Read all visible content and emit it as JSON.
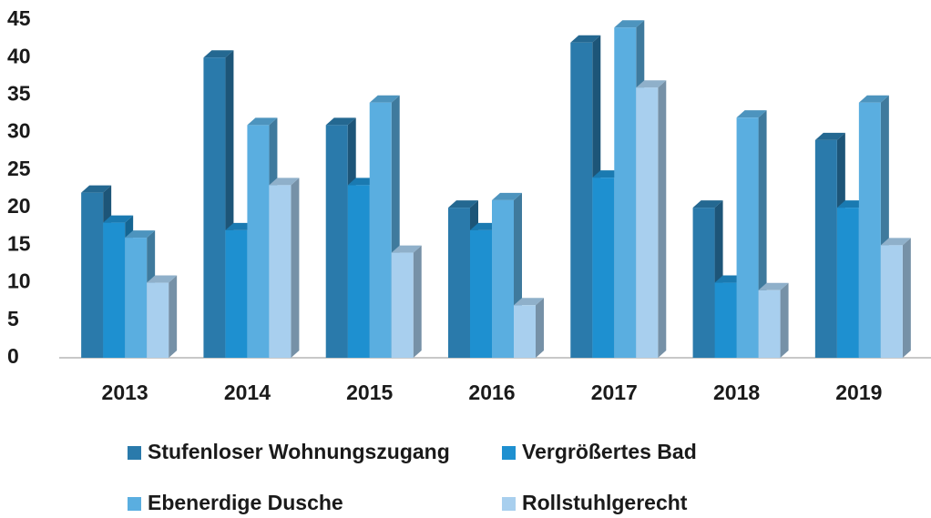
{
  "chart_data": {
    "type": "bar3d",
    "categories": [
      "2013",
      "2014",
      "2015",
      "2016",
      "2017",
      "2018",
      "2019"
    ],
    "series": [
      {
        "name": "Stufenloser Wohnungszugang",
        "color": "#2a7aab",
        "values": [
          22,
          40,
          31,
          20,
          42,
          20,
          29
        ]
      },
      {
        "name": "Vergrößertes Bad",
        "color": "#1e90d0",
        "values": [
          18,
          17,
          23,
          17,
          24,
          10,
          20
        ]
      },
      {
        "name": "Ebenerdige Dusche",
        "color": "#5aaee0",
        "values": [
          16,
          31,
          34,
          21,
          44,
          32,
          34
        ]
      },
      {
        "name": "Rollstuhlgerecht",
        "color": "#a8cfee",
        "values": [
          10,
          23,
          14,
          7,
          36,
          9,
          15
        ]
      }
    ],
    "ylim": [
      0,
      45
    ],
    "yticks": [
      0,
      5,
      10,
      15,
      20,
      25,
      30,
      35,
      40,
      45
    ],
    "grid": false
  }
}
